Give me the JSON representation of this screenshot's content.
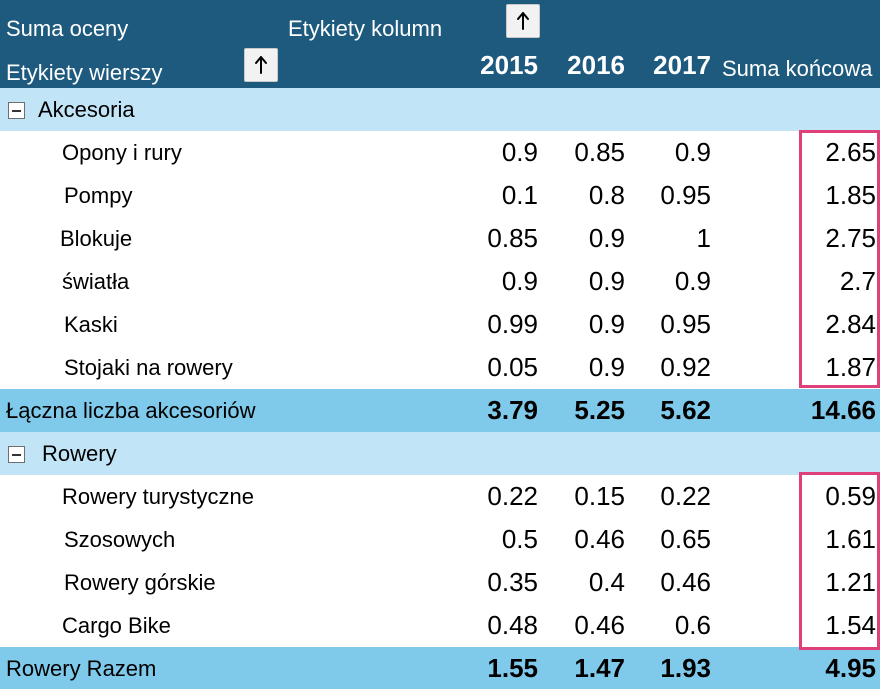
{
  "header": {
    "value_label": "Suma oceny",
    "column_labels": "Etykiety kolumn",
    "row_labels": "Etykiety wierszy",
    "years": [
      "2015",
      "2016",
      "2017"
    ],
    "grand_total_label": "Suma końcowa"
  },
  "groups": [
    {
      "name": "Akcesoria",
      "items": [
        {
          "label": "Opony i rury",
          "values": [
            "0.9",
            "0.85",
            "0.9"
          ],
          "total": "2.65"
        },
        {
          "label": "Pompy",
          "values": [
            "0.1",
            "0.8",
            "0.95"
          ],
          "total": "1.85"
        },
        {
          "label": "Blokuje",
          "values": [
            "0.85",
            "0.9",
            "1"
          ],
          "total": "2.75"
        },
        {
          "label": "światła",
          "values": [
            "0.9",
            "0.9",
            "0.9"
          ],
          "total": "2.7"
        },
        {
          "label": "Kaski",
          "values": [
            "0.99",
            "0.9",
            "0.95"
          ],
          "total": "2.84"
        },
        {
          "label": "Stojaki na rowery",
          "values": [
            "0.05",
            "0.9",
            "0.92"
          ],
          "total": "1.87"
        }
      ],
      "subtotal": {
        "label": "Łączna liczba akcesoriów",
        "values": [
          "3.79",
          "5.25",
          "5.62"
        ],
        "total": "14.66"
      }
    },
    {
      "name": "Rowery",
      "items": [
        {
          "label": "Rowery turystyczne",
          "values": [
            "0.22",
            "0.15",
            "0.22"
          ],
          "total": "0.59"
        },
        {
          "label": "Szosowych",
          "values": [
            "0.5",
            "0.46",
            "0.65"
          ],
          "total": "1.61"
        },
        {
          "label": "Rowery górskie",
          "values": [
            "0.35",
            "0.4",
            "0.46"
          ],
          "total": "1.21"
        },
        {
          "label": "Cargo Bike",
          "values": [
            "0.48",
            "0.46",
            "0.6"
          ],
          "total": "1.54"
        }
      ],
      "subtotal": {
        "label": "Rowery Razem",
        "values": [
          "1.55",
          "1.47",
          "1.93"
        ],
        "total": "4.95"
      }
    }
  ],
  "colors": {
    "header_bg": "#1d5a7e",
    "group_bg": "#c2e4f7",
    "subtotal_bg": "#7fc9ea",
    "highlight": "#e0407a"
  },
  "icons": {
    "sort": "up-arrow-icon",
    "collapse": "minus-box-icon"
  }
}
